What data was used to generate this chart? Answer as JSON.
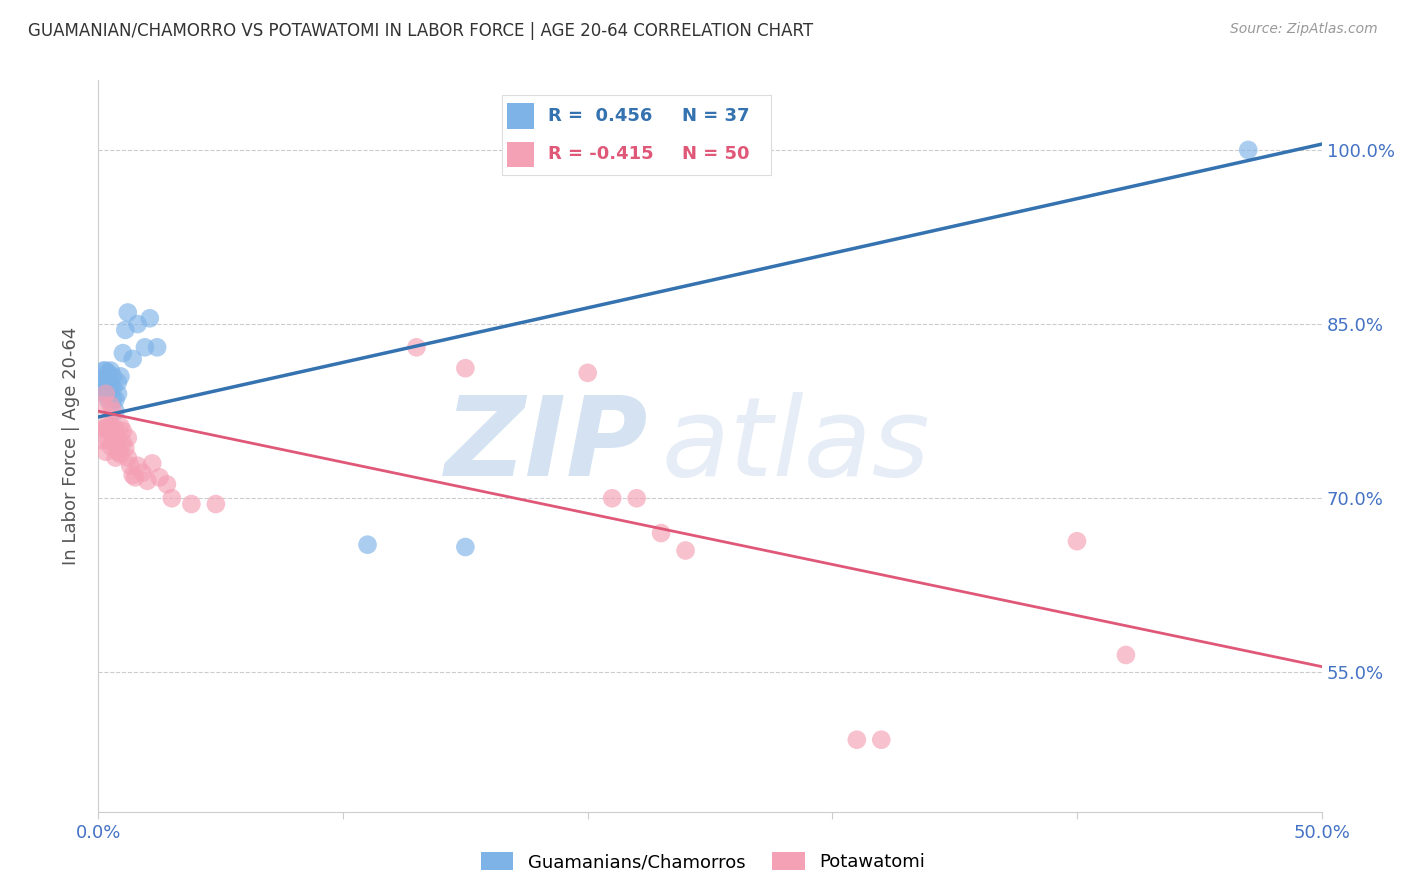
{
  "title": "GUAMANIAN/CHAMORRO VS POTAWATOMI IN LABOR FORCE | AGE 20-64 CORRELATION CHART",
  "source": "Source: ZipAtlas.com",
  "ylabel": "In Labor Force | Age 20-64",
  "ytick_labels": [
    "55.0%",
    "70.0%",
    "85.0%",
    "100.0%"
  ],
  "ytick_values": [
    0.55,
    0.7,
    0.85,
    1.0
  ],
  "xlim": [
    0.0,
    0.5
  ],
  "ylim": [
    0.43,
    1.06
  ],
  "blue_color": "#7EB3E8",
  "pink_color": "#F4A0B5",
  "blue_line_color": "#3572B0",
  "pink_line_color": "#E05878",
  "legend_label_blue": "Guamanians/Chamorros",
  "legend_label_pink": "Potawatomi",
  "watermark_zip": "ZIP",
  "watermark_atlas": "atlas",
  "blue_scatter_x": [
    0.001,
    0.002,
    0.002,
    0.002,
    0.003,
    0.003,
    0.003,
    0.003,
    0.003,
    0.004,
    0.004,
    0.004,
    0.004,
    0.005,
    0.005,
    0.005,
    0.006,
    0.006,
    0.006,
    0.007,
    0.007,
    0.008,
    0.008,
    0.009,
    0.01,
    0.011,
    0.012,
    0.014,
    0.016,
    0.019,
    0.021,
    0.024,
    0.11,
    0.15,
    0.47
  ],
  "blue_scatter_y": [
    0.8,
    0.795,
    0.8,
    0.81,
    0.79,
    0.795,
    0.8,
    0.805,
    0.81,
    0.785,
    0.79,
    0.8,
    0.808,
    0.793,
    0.8,
    0.81,
    0.785,
    0.795,
    0.805,
    0.775,
    0.785,
    0.79,
    0.8,
    0.805,
    0.825,
    0.845,
    0.86,
    0.82,
    0.85,
    0.83,
    0.855,
    0.83,
    0.66,
    0.658,
    1.0
  ],
  "pink_scatter_x": [
    0.001,
    0.002,
    0.002,
    0.003,
    0.003,
    0.003,
    0.004,
    0.004,
    0.004,
    0.005,
    0.005,
    0.005,
    0.006,
    0.006,
    0.006,
    0.007,
    0.007,
    0.007,
    0.008,
    0.008,
    0.009,
    0.009,
    0.01,
    0.01,
    0.011,
    0.012,
    0.012,
    0.013,
    0.014,
    0.015,
    0.016,
    0.018,
    0.02,
    0.022,
    0.025,
    0.028,
    0.03,
    0.038,
    0.048,
    0.13,
    0.15,
    0.2,
    0.21,
    0.22,
    0.23,
    0.24,
    0.31,
    0.32,
    0.4,
    0.42
  ],
  "pink_scatter_y": [
    0.75,
    0.78,
    0.76,
    0.79,
    0.76,
    0.74,
    0.765,
    0.75,
    0.76,
    0.78,
    0.763,
    0.745,
    0.775,
    0.757,
    0.748,
    0.76,
    0.748,
    0.735,
    0.752,
    0.74,
    0.762,
    0.738,
    0.758,
    0.748,
    0.743,
    0.752,
    0.735,
    0.728,
    0.72,
    0.718,
    0.728,
    0.722,
    0.715,
    0.73,
    0.718,
    0.712,
    0.7,
    0.695,
    0.695,
    0.83,
    0.812,
    0.808,
    0.7,
    0.7,
    0.67,
    0.655,
    0.492,
    0.492,
    0.663,
    0.565
  ],
  "blue_line_x": [
    0.0,
    0.5
  ],
  "blue_line_y": [
    0.77,
    1.005
  ],
  "pink_line_x": [
    0.0,
    0.5
  ],
  "pink_line_y": [
    0.775,
    0.555
  ],
  "grid_color": "#CCCCCC",
  "background_color": "#FFFFFF",
  "tick_label_color": "#4472C4",
  "ylabel_color": "#555555"
}
